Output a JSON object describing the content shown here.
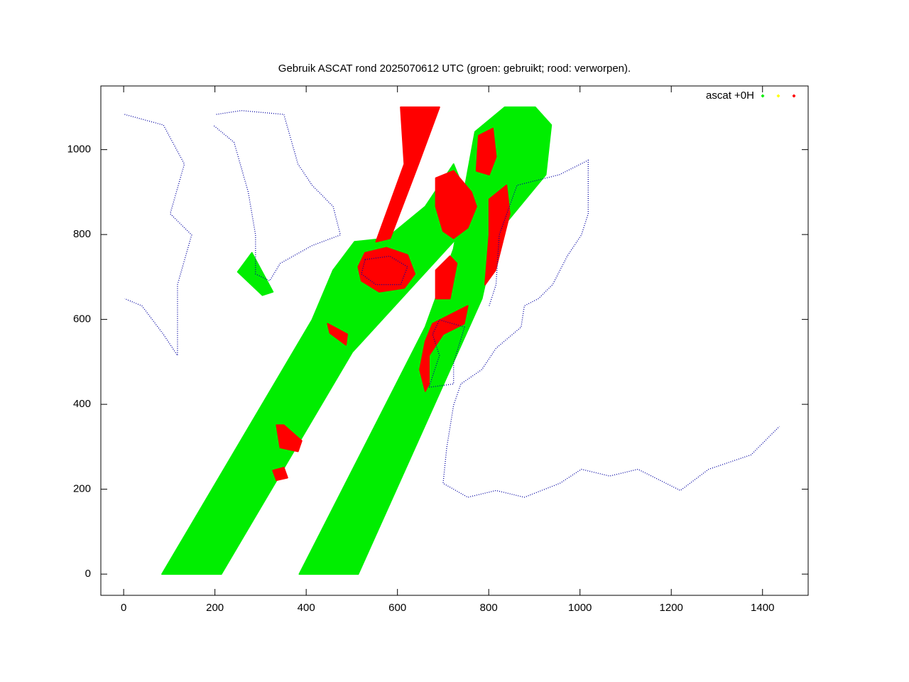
{
  "chart_data": {
    "type": "polygon",
    "title": "Gebruik ASCAT rond 2025070612 UTC (groen: gebruikt; rood: verworpen).",
    "xlim": [
      -50,
      1500
    ],
    "ylim": [
      -50,
      1150
    ],
    "xticks": [
      0,
      200,
      400,
      600,
      800,
      1000,
      1200,
      1400
    ],
    "yticks": [
      0,
      200,
      400,
      600,
      800,
      1000
    ],
    "legend": {
      "label": "ascat +0H",
      "colors": [
        "#00ee00",
        "#ffff00",
        "#ff0000"
      ]
    },
    "legend_position": "top right",
    "series": [
      {
        "style": "fill",
        "color": "#00ee00",
        "x": [
          84,
          214,
          501,
          736,
          754,
          723,
          661,
          576,
          506,
          459,
          413,
          null,
          385,
          514,
          785,
          816,
          925,
          937,
          902,
          835,
          770,
          723,
          661,
          null,
          250,
          281,
          327,
          304
        ],
        "y": [
          0,
          0,
          523,
          799,
          883,
          966,
          866,
          791,
          783,
          716,
          599,
          null,
          0,
          0,
          649,
          799,
          941,
          1058,
          1100,
          1100,
          1042,
          766,
          582,
          null,
          712,
          757,
          665,
          657
        ]
      },
      {
        "style": "fill",
        "color": "#ff0000",
        "x": [
          607,
          692,
          646,
          584,
          553,
          615,
          null,
          514,
          529,
          576,
          622,
          638,
          615,
          560,
          521,
          null,
          684,
          723,
          762,
          773,
          754,
          723,
          700,
          684,
          null,
          801,
          839,
          846,
          815,
          792,
          801,
          null,
          677,
          723,
          754,
          746,
          700,
          669,
          669,
          661,
          649,
          661,
          null,
          684,
          715,
          730,
          715,
          684,
          null,
          778,
          809,
          816,
          801,
          773,
          null,
          335,
          351,
          390,
          382,
          343,
          null,
          327,
          351,
          359,
          335,
          null,
          447,
          490,
          487,
          452
        ],
        "y": [
          1100,
          1100,
          966,
          791,
          783,
          966,
          null,
          724,
          757,
          769,
          752,
          707,
          674,
          665,
          691,
          null,
          933,
          950,
          900,
          866,
          816,
          791,
          808,
          866,
          null,
          883,
          916,
          849,
          716,
          682,
          799,
          null,
          590,
          615,
          632,
          590,
          565,
          515,
          448,
          431,
          482,
          548,
          null,
          716,
          749,
          732,
          649,
          649,
          null,
          1033,
          1050,
          983,
          941,
          950,
          null,
          351,
          351,
          314,
          289,
          298,
          null,
          244,
          251,
          227,
          221,
          null,
          590,
          565,
          540,
          568
        ]
      },
      {
        "style": "dots",
        "color": "#0000a0",
        "x": [
          203,
          258,
          351,
          382,
          413,
          459,
          475,
          413,
          343,
          320,
          289,
          289,
          273,
          242,
          196,
          null,
          801,
          816,
          823,
          862,
          955,
          1018,
          1018,
          1003,
          972,
          940,
          909,
          878,
          871,
          816,
          785,
          739,
          723,
          708,
          700,
          754,
          816,
          878,
          956,
          1003,
          1065,
          1127,
          1220,
          1282,
          1375,
          1437,
          null,
          692,
          747,
          723,
          723,
          669,
          692,
          677,
          692,
          null,
          529,
          583,
          622,
          607,
          553,
          521,
          529,
          null,
          2,
          87,
          133,
          102,
          149,
          118,
          118,
          87,
          40,
          2
        ],
        "y": [
          1083,
          1092,
          1083,
          966,
          916,
          866,
          799,
          774,
          732,
          691,
          707,
          799,
          900,
          1017,
          1058,
          null,
          632,
          682,
          799,
          916,
          941,
          975,
          849,
          799,
          749,
          682,
          649,
          632,
          582,
          532,
          482,
          448,
          398,
          298,
          214,
          181,
          197,
          181,
          214,
          247,
          231,
          247,
          197,
          247,
          281,
          348,
          null,
          599,
          582,
          498,
          448,
          440,
          515,
          565,
          599,
          null,
          741,
          749,
          724,
          682,
          682,
          707,
          741,
          null,
          1083,
          1058,
          966,
          849,
          799,
          682,
          515,
          565,
          632,
          649
        ]
      }
    ]
  }
}
